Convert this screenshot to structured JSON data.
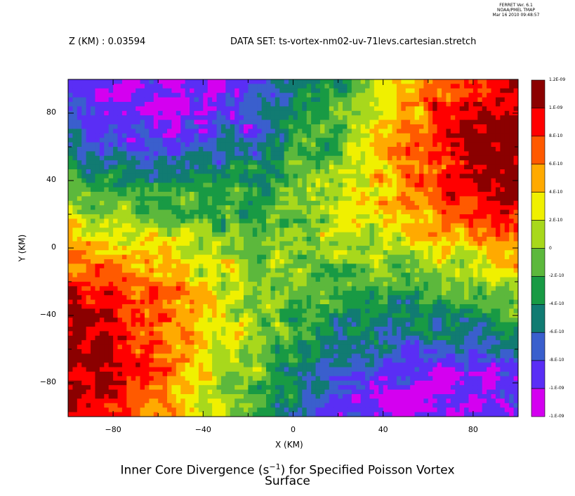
{
  "header": {
    "stamp": [
      "FERRET Ver. 6.1",
      "NOAA/PMEL TMAP",
      "Mar 16 2010 09:48:57"
    ],
    "z_label": "Z (KM) : 0.03594",
    "dataset_label": "DATA SET: ts-vortex-nm02-uv-71levs.cartesian.stretch"
  },
  "chart_data": {
    "type": "heatmap",
    "title": "Inner Core Divergence (s-1) for Specified Poisson Vortex",
    "title_parts": {
      "pre": "Inner Core Divergence (s",
      "sup": "−1",
      "post": ") for Specified Poisson Vortex"
    },
    "subtitle": "Surface",
    "xlabel": "X (KM)",
    "ylabel": "Y (KM)",
    "xlim": [
      -100,
      100
    ],
    "ylim": [
      -100,
      100
    ],
    "x_ticks": [
      -80,
      -40,
      0,
      40,
      80
    ],
    "y_ticks": [
      -80,
      -40,
      0,
      40,
      80
    ],
    "x_tick_labels": [
      "−80",
      "−40",
      "0",
      "40",
      "80"
    ],
    "y_tick_labels": [
      "−80",
      "−40",
      "0",
      "40",
      "80"
    ],
    "pattern": "quadrupole: positive (red) in upper-right and lower-left corners and along left/right edges near y=+60/−60, negative (blue) in upper-left and lower-right corners; noisy small-scale alternating values throughout",
    "colorbar": {
      "levels": [
        -1.2e-09,
        -1e-09,
        -8e-10,
        -6e-10,
        -4e-10,
        -2e-10,
        0,
        2e-10,
        4e-10,
        6e-10,
        8e-10,
        1e-09,
        1.2e-09
      ],
      "labels_top_to_bottom": [
        "1.2E-09",
        "1.E-09",
        "8.E-10",
        "6.E-10",
        "4.E-10",
        "2.E-10",
        "0",
        "-2.E-10",
        "-4.E-10",
        "-6.E-10",
        "-8.E-10",
        "-1.E-09",
        "-1.E-09"
      ],
      "colors_top_to_bottom": [
        "#8b0000",
        "#ff0000",
        "#ff5a00",
        "#ffaa00",
        "#f0f000",
        "#a8d81c",
        "#5cb83c",
        "#189a44",
        "#117b72",
        "#3a5fcd",
        "#5a2ef5",
        "#d400f0"
      ]
    }
  }
}
